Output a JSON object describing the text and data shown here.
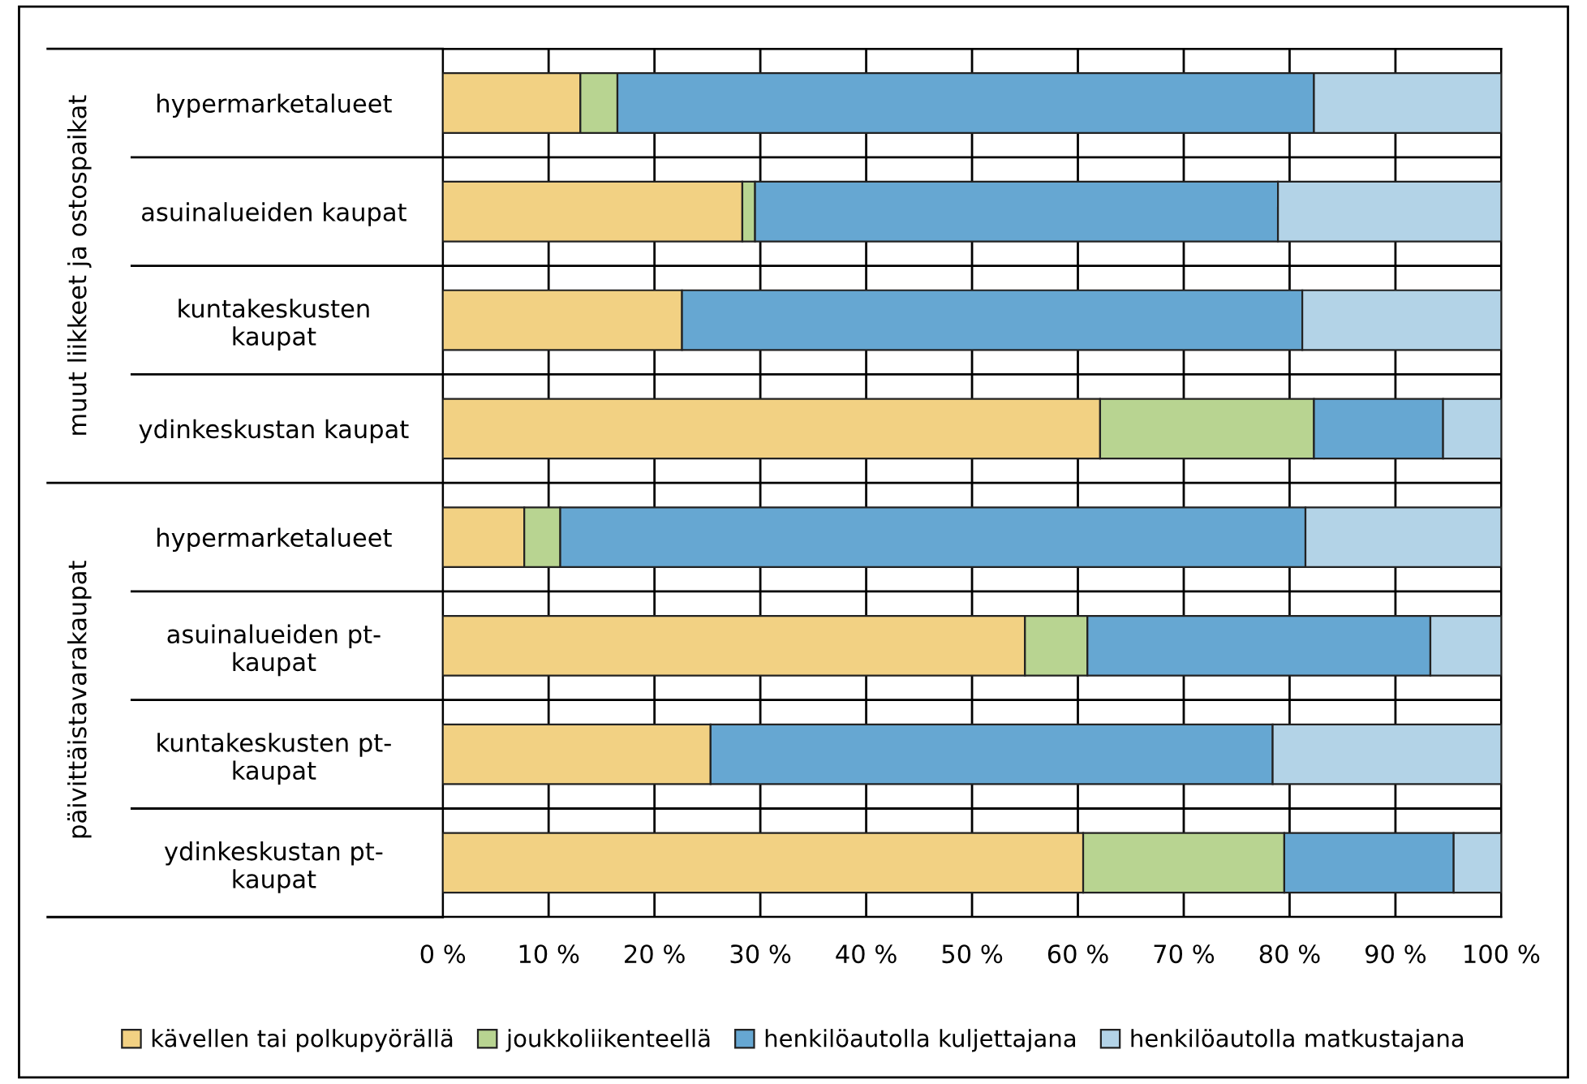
{
  "chart_data": {
    "type": "bar",
    "orientation": "horizontal",
    "stacked": true,
    "categories": [
      "hypermarketalueet",
      "asuinalueiden kaupat",
      "kuntakeskusten\nkaupat",
      "ydinkeskustan kaupat",
      "hypermarketalueet",
      "asuinalueiden pt-\nkaupat",
      "kuntakeskusten pt-\nkaupat",
      "ydinkeskustan pt-\nkaupat"
    ],
    "series": [
      {
        "name": "kävellen tai polkupyörällä",
        "color": "#f2d183",
        "values": [
          13.0,
          28.3,
          22.6,
          62.1,
          7.7,
          55.0,
          25.3,
          60.5
        ]
      },
      {
        "name": "joukkoliikenteellä",
        "color": "#b8d491",
        "values": [
          3.5,
          1.2,
          null,
          20.2,
          3.4,
          5.9,
          null,
          19.0
        ]
      },
      {
        "name": "henkilöautolla kuljettajana",
        "color": "#66a7d2",
        "values": [
          65.8,
          49.4,
          58.6,
          12.2,
          70.4,
          32.4,
          53.1,
          16.0
        ]
      },
      {
        "name": "henkilöautolla matkustajana",
        "color": "#b3d3e7",
        "values": [
          17.7,
          21.1,
          18.8,
          5.5,
          18.5,
          6.7,
          21.6,
          4.5
        ]
      }
    ],
    "xlim": [
      0,
      100
    ],
    "xticks": [
      {
        "value": 0,
        "label": "0 %"
      },
      {
        "value": 10,
        "label": "10 %"
      },
      {
        "value": 20,
        "label": "20 %"
      },
      {
        "value": 30,
        "label": "30 %"
      },
      {
        "value": 40,
        "label": "40 %"
      },
      {
        "value": 50,
        "label": "50 %"
      },
      {
        "value": 60,
        "label": "60 %"
      },
      {
        "value": 70,
        "label": "70 %"
      },
      {
        "value": 80,
        "label": "80 %"
      },
      {
        "value": 90,
        "label": "90 %"
      },
      {
        "value": 100,
        "label": "100 %"
      }
    ],
    "annotations": [
      "muut liikkeet ja ostospaikat",
      "päivittäistavarakaupat"
    ],
    "grid": true,
    "legend": "bottom"
  }
}
